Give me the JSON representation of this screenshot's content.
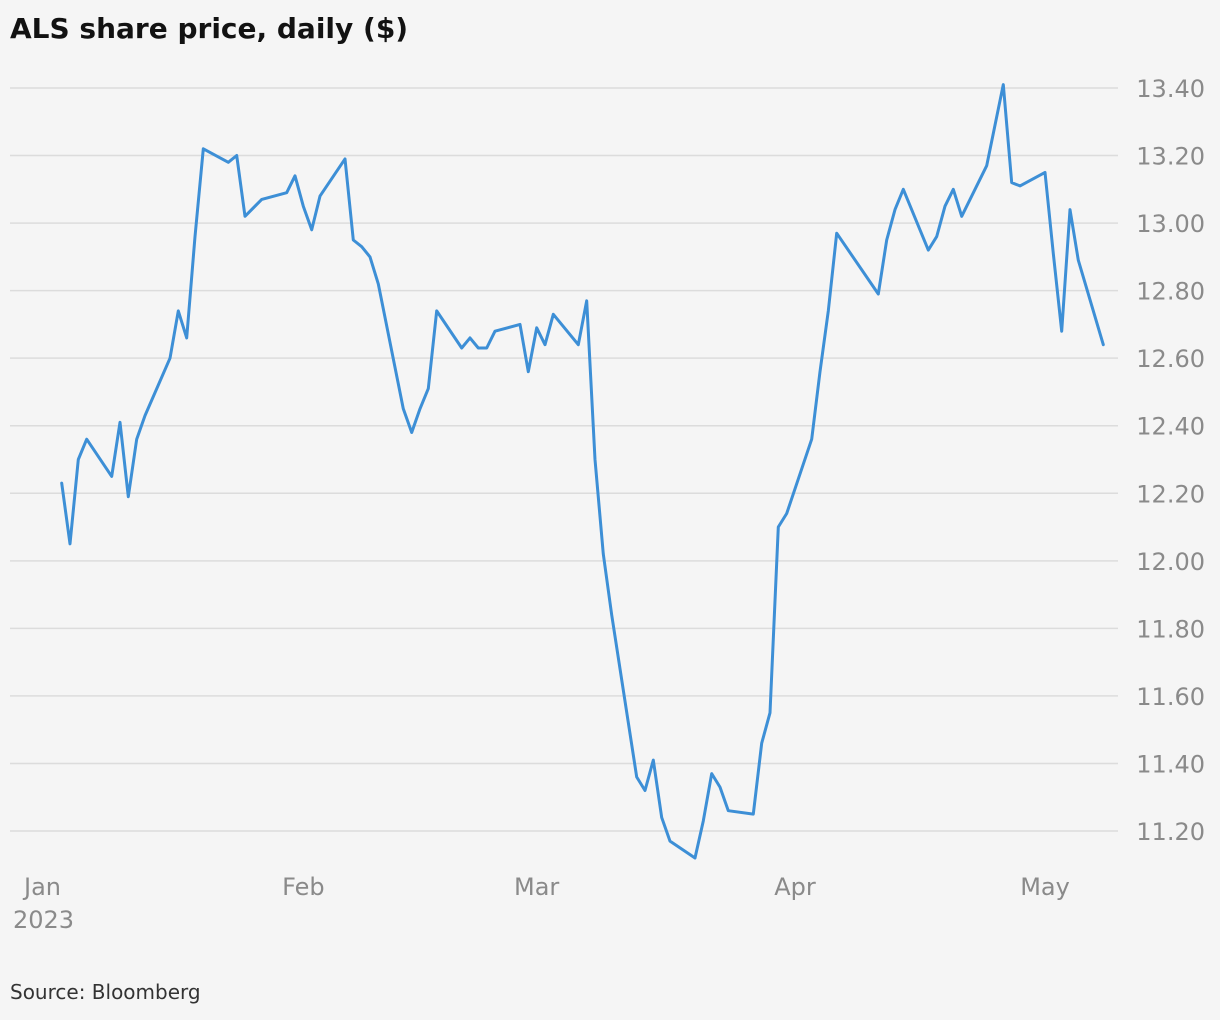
{
  "title": "ALS share price, daily ($)",
  "source": "Source: Bloomberg",
  "colors": {
    "line": "#3d8fd6",
    "grid": "#dcdcdc",
    "tick_text": "#8a8a8a",
    "background": "#f5f5f5"
  },
  "chart_data": {
    "type": "line",
    "title": "ALS share price, daily ($)",
    "xlabel": "",
    "ylabel": "",
    "y_axis_position": "right",
    "ylim": [
      11.1,
      13.45
    ],
    "y_ticks": [
      11.2,
      11.4,
      11.6,
      11.8,
      12.0,
      12.2,
      12.4,
      12.6,
      12.8,
      13.0,
      13.2,
      13.4
    ],
    "y_tick_labels": [
      "11.20",
      "11.40",
      "11.60",
      "11.80",
      "12.00",
      "12.20",
      "12.40",
      "12.60",
      "12.80",
      "13.00",
      "13.20",
      "13.40"
    ],
    "xlim": [
      "2022-12-31",
      "2023-05-10"
    ],
    "x_ticks": [
      {
        "date": "2023-01-01",
        "label": "Jan",
        "sublabel": "2023"
      },
      {
        "date": "2023-02-01",
        "label": "Feb"
      },
      {
        "date": "2023-03-01",
        "label": "Mar"
      },
      {
        "date": "2023-04-01",
        "label": "Apr"
      },
      {
        "date": "2023-05-01",
        "label": "May"
      }
    ],
    "grid": true,
    "series": [
      {
        "x": [
          "2023-01-03",
          "2023-01-04",
          "2023-01-05",
          "2023-01-06",
          "2023-01-09",
          "2023-01-10",
          "2023-01-11",
          "2023-01-12",
          "2023-01-13",
          "2023-01-16",
          "2023-01-17",
          "2023-01-18",
          "2023-01-19",
          "2023-01-20",
          "2023-01-23",
          "2023-01-24",
          "2023-01-25",
          "2023-01-27",
          "2023-01-30",
          "2023-01-31",
          "2023-02-01",
          "2023-02-02",
          "2023-02-03",
          "2023-02-06",
          "2023-02-07",
          "2023-02-08",
          "2023-02-09",
          "2023-02-10",
          "2023-02-13",
          "2023-02-14",
          "2023-02-15",
          "2023-02-16",
          "2023-02-17",
          "2023-02-20",
          "2023-02-21",
          "2023-02-22",
          "2023-02-23",
          "2023-02-24",
          "2023-02-27",
          "2023-02-28",
          "2023-03-01",
          "2023-03-02",
          "2023-03-03",
          "2023-03-06",
          "2023-03-07",
          "2023-03-08",
          "2023-03-09",
          "2023-03-10",
          "2023-03-13",
          "2023-03-14",
          "2023-03-15",
          "2023-03-16",
          "2023-03-17",
          "2023-03-20",
          "2023-03-21",
          "2023-03-22",
          "2023-03-23",
          "2023-03-24",
          "2023-03-27",
          "2023-03-28",
          "2023-03-29",
          "2023-03-30",
          "2023-03-31",
          "2023-04-03",
          "2023-04-04",
          "2023-04-05",
          "2023-04-06",
          "2023-04-11",
          "2023-04-12",
          "2023-04-13",
          "2023-04-14",
          "2023-04-17",
          "2023-04-18",
          "2023-04-19",
          "2023-04-20",
          "2023-04-21",
          "2023-04-24",
          "2023-04-26",
          "2023-04-27",
          "2023-04-28",
          "2023-05-01",
          "2023-05-02",
          "2023-05-03",
          "2023-05-04",
          "2023-05-05",
          "2023-05-08"
        ],
        "values": [
          12.23,
          12.05,
          12.3,
          12.36,
          12.25,
          12.41,
          12.19,
          12.36,
          12.43,
          12.6,
          12.74,
          12.66,
          12.96,
          13.22,
          13.18,
          13.2,
          13.02,
          13.07,
          13.09,
          13.14,
          13.05,
          12.98,
          13.08,
          13.19,
          12.95,
          12.93,
          12.9,
          12.82,
          12.45,
          12.38,
          12.45,
          12.51,
          12.74,
          12.63,
          12.66,
          12.63,
          12.63,
          12.68,
          12.7,
          12.56,
          12.69,
          12.64,
          12.73,
          12.64,
          12.77,
          12.3,
          12.02,
          11.84,
          11.36,
          11.32,
          11.41,
          11.24,
          11.17,
          11.12,
          11.23,
          11.37,
          11.33,
          11.26,
          11.25,
          11.46,
          11.55,
          12.1,
          12.14,
          12.36,
          12.56,
          12.74,
          12.97,
          12.79,
          12.95,
          13.04,
          13.1,
          12.92,
          12.96,
          13.05,
          13.1,
          13.02,
          13.17,
          13.41,
          13.12,
          13.11,
          13.15,
          12.91,
          12.68,
          13.04,
          12.89,
          12.64
        ]
      }
    ]
  }
}
